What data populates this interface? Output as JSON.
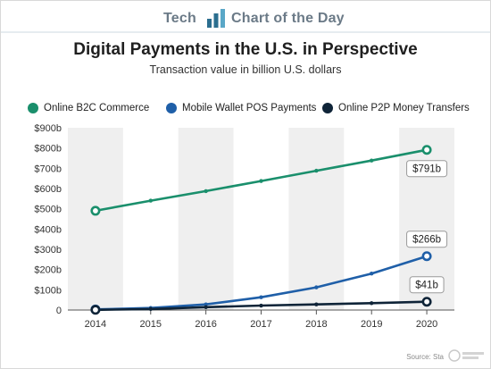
{
  "brand": {
    "left_word": "Tech",
    "right_word": "Chart of the Day"
  },
  "header": {
    "title": "Digital Payments in the U.S. in Perspective",
    "subtitle": "Transaction value in billion U.S. dollars"
  },
  "footer": {
    "source": "Source: Sta"
  },
  "colors": {
    "b2c": "#1a8f6c",
    "wallet": "#1f5fa8",
    "p2p": "#0f2438",
    "band": "#efefef",
    "axis": "#555555",
    "brand": "#6b7a87",
    "logo": "#2b6e8f"
  },
  "icons": {
    "logo": "bar-chart-logo-icon",
    "watermark": "watermark-icon"
  },
  "chart_data": {
    "type": "line",
    "title": "Digital Payments in the U.S. in Perspective",
    "subtitle": "Transaction value in billion U.S. dollars",
    "xlabel": "",
    "ylabel": "",
    "x": [
      2014,
      2015,
      2016,
      2017,
      2018,
      2019,
      2020
    ],
    "ylim": [
      0,
      900
    ],
    "y_ticks": [
      0,
      100,
      200,
      300,
      400,
      500,
      600,
      700,
      800,
      900
    ],
    "y_tick_labels": [
      "0",
      "$100b",
      "$200b",
      "$300b",
      "$400b",
      "$500b",
      "$600b",
      "$700b",
      "$800b",
      "$900b"
    ],
    "x_tick_labels": [
      "2014",
      "2015",
      "2016",
      "2017",
      "2018",
      "2019",
      "2020"
    ],
    "grid": false,
    "alternating_bands": true,
    "legend_position": "top-left",
    "series": [
      {
        "name": "Online B2C Commerce",
        "color": "#1a8f6c",
        "values": [
          490,
          540,
          587,
          637,
          688,
          738,
          791
        ]
      },
      {
        "name": "Mobile Wallet POS Payments",
        "color": "#1f5fa8",
        "values": [
          3,
          10,
          28,
          63,
          112,
          180,
          266
        ]
      },
      {
        "name": "Online P2P Money Transfers",
        "color": "#0f2438",
        "values": [
          1,
          5,
          14,
          22,
          28,
          34,
          41
        ]
      }
    ],
    "annotations": [
      {
        "series": 0,
        "x": 2020,
        "text": "$791b"
      },
      {
        "series": 1,
        "x": 2020,
        "text": "$266b"
      },
      {
        "series": 2,
        "x": 2020,
        "text": "$41b"
      }
    ]
  }
}
